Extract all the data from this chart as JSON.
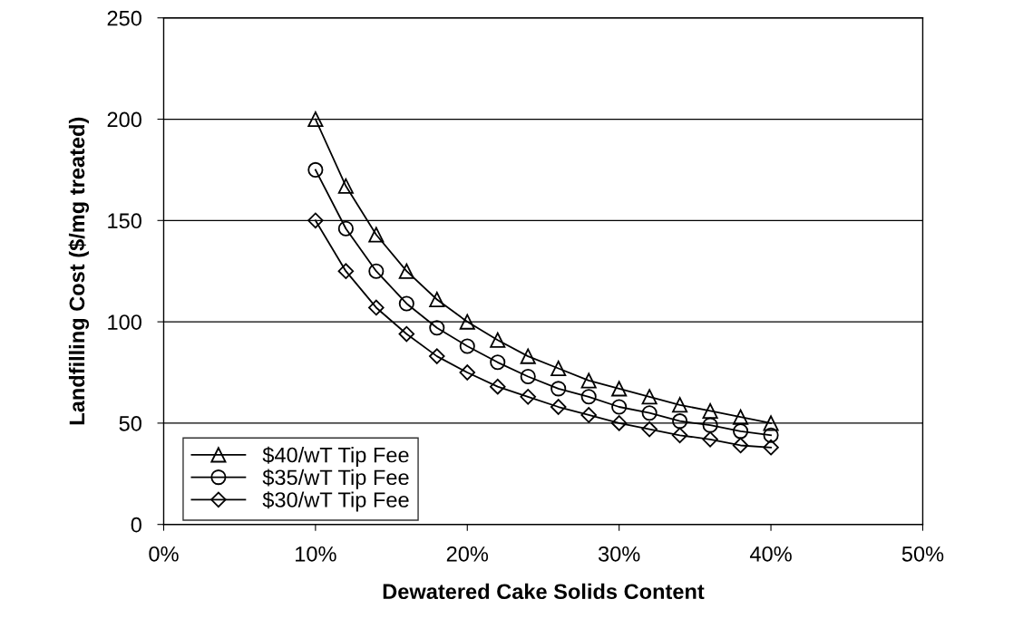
{
  "chart_data": {
    "type": "line",
    "xlabel": "Dewatered Cake Solids Content",
    "ylabel": "Landfilling Cost ($/mg treated)",
    "x": [
      10,
      12,
      14,
      16,
      18,
      20,
      22,
      24,
      26,
      28,
      30,
      32,
      34,
      36,
      38,
      40
    ],
    "series": [
      {
        "name": "$40/wT Tip Fee",
        "color": "#000000",
        "marker": "triangle",
        "values": [
          200,
          167,
          143,
          125,
          111,
          100,
          91,
          83,
          77,
          71,
          67,
          63,
          59,
          56,
          53,
          50
        ]
      },
      {
        "name": "$35/wT Tip Fee",
        "color": "#000000",
        "marker": "circle",
        "values": [
          175,
          146,
          125,
          109,
          97,
          88,
          80,
          73,
          67,
          63,
          58,
          55,
          51,
          49,
          46,
          44
        ]
      },
      {
        "name": "$30/wT Tip Fee",
        "color": "#000000",
        "marker": "diamond",
        "values": [
          150,
          125,
          107,
          94,
          83,
          75,
          68,
          63,
          58,
          54,
          50,
          47,
          44,
          42,
          39,
          38
        ]
      }
    ],
    "xlim": [
      0,
      50
    ],
    "xticks": [
      {
        "value": 0,
        "label": "0%"
      },
      {
        "value": 10,
        "label": "10%"
      },
      {
        "value": 20,
        "label": "20%"
      },
      {
        "value": 30,
        "label": "30%"
      },
      {
        "value": 40,
        "label": "40%"
      },
      {
        "value": 50,
        "label": "50%"
      }
    ],
    "ylim": [
      0,
      250
    ],
    "yticks": [
      0,
      50,
      100,
      150,
      200,
      250
    ],
    "grid": "y",
    "legend": "bottom left",
    "line_style": "solid"
  }
}
